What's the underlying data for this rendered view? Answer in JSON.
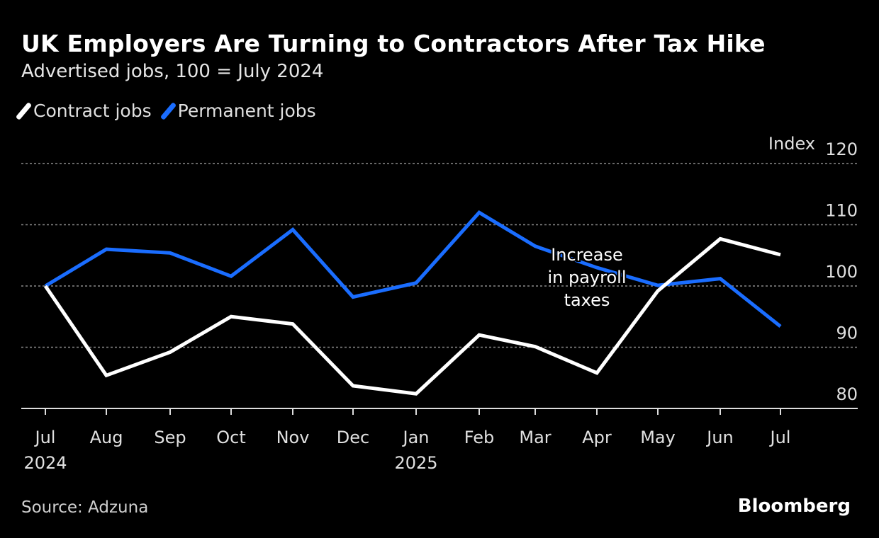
{
  "chart_data": {
    "type": "line",
    "title": "UK Employers Are Turning to Contractors After Tax Hike",
    "subtitle": "Advertised jobs, 100 = July 2024",
    "ylabel": "Index",
    "ylim": [
      80,
      120
    ],
    "yticks": [
      80,
      90,
      100,
      110,
      120
    ],
    "grid": true,
    "legend_placement": "top-left",
    "categories": [
      "Jul",
      "Aug",
      "Sep",
      "Oct",
      "Nov",
      "Dec",
      "Jan",
      "Feb",
      "Mar",
      "Apr",
      "May",
      "Jun",
      "Jul"
    ],
    "year_labels": {
      "0": "2024",
      "6": "2025"
    },
    "series": [
      {
        "name": "Contract jobs",
        "color": "#ffffff",
        "values": [
          100,
          85.4,
          89.2,
          95.0,
          93.8,
          83.7,
          82.4,
          92.0,
          90.1,
          85.8,
          99.2,
          107.7,
          105.1
        ]
      },
      {
        "name": "Permanent jobs",
        "color": "#1a6dff",
        "values": [
          100,
          106.0,
          105.4,
          101.6,
          109.2,
          98.2,
          100.5,
          112.0,
          106.5,
          103.0,
          100.1,
          101.2,
          93.4
        ]
      }
    ],
    "annotations": [
      {
        "text_lines": [
          "Increase",
          "in payroll",
          "taxes"
        ],
        "at_category_index": 9
      }
    ],
    "source": "Source: Adzuna",
    "brand": "Bloomberg"
  }
}
